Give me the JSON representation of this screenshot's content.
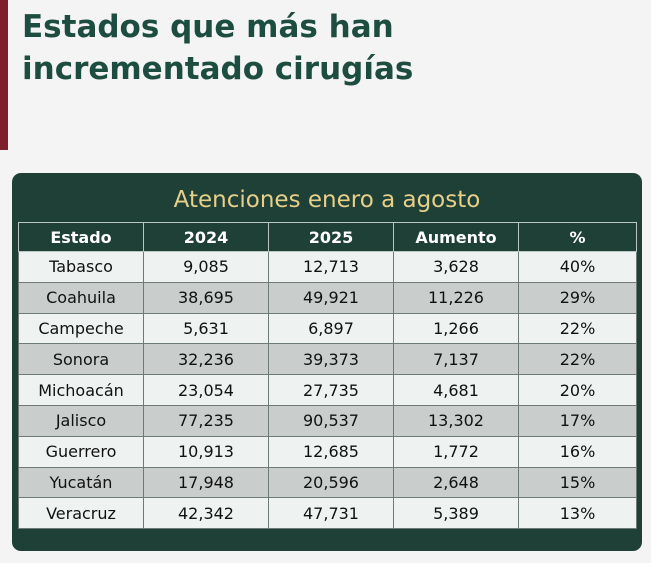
{
  "title": "Estados que más han incrementado cirugías",
  "table": {
    "heading": "Atenciones enero a agosto",
    "columns": [
      "Estado",
      "2024",
      "2025",
      "Aumento",
      "%"
    ],
    "rows": [
      [
        "Tabasco",
        "9,085",
        "12,713",
        "3,628",
        "40%"
      ],
      [
        "Coahuila",
        "38,695",
        "49,921",
        "11,226",
        "29%"
      ],
      [
        "Campeche",
        "5,631",
        "6,897",
        "1,266",
        "22%"
      ],
      [
        "Sonora",
        "32,236",
        "39,373",
        "7,137",
        "22%"
      ],
      [
        "Michoacán",
        "23,054",
        "27,735",
        "4,681",
        "20%"
      ],
      [
        "Jalisco",
        "77,235",
        "90,537",
        "13,302",
        "17%"
      ],
      [
        "Guerrero",
        "10,913",
        "12,685",
        "1,772",
        "16%"
      ],
      [
        "Yucatán",
        "17,948",
        "20,596",
        "2,648",
        "15%"
      ],
      [
        "Veracruz",
        "42,342",
        "47,731",
        "5,389",
        "13%"
      ]
    ]
  },
  "colors": {
    "title": "#1d4d40",
    "table_background": "#1f4037",
    "heading_text": "#e6d08a",
    "accent": "#7d1f2d",
    "row_light": "#eef3f1",
    "row_dark": "#c9cecc"
  }
}
